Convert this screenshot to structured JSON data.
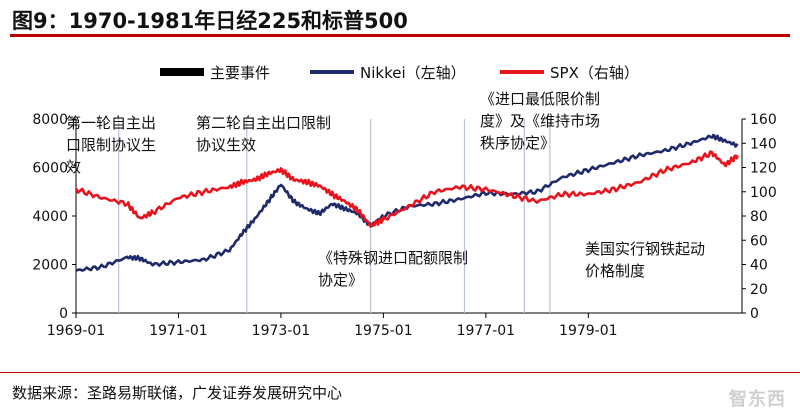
{
  "header": {
    "title": "图9：1970-1981年日经225和标普500"
  },
  "footer": {
    "source": "数据来源：圣路易斯联储，广发证券发展研究中心",
    "watermark": "智东西"
  },
  "chart_data": {
    "type": "line",
    "title": "",
    "xlabel": "",
    "ylabel": "",
    "x_ticks": [
      "1969-01",
      "1971-01",
      "1973-01",
      "1975-01",
      "1977-01",
      "1979-01"
    ],
    "y_left_ticks": [
      0,
      2000,
      4000,
      6000,
      8000
    ],
    "y_right_ticks": [
      0,
      20,
      40,
      60,
      80,
      100,
      120,
      140,
      160
    ],
    "ylim_left": [
      0,
      8000
    ],
    "ylim_right": [
      0,
      160
    ],
    "xlim": [
      "1969-01",
      "1981-12"
    ],
    "legend": {
      "placement": "top-center",
      "entries": [
        {
          "key": "events",
          "label": "主要事件",
          "color": "#000000"
        },
        {
          "key": "nikkei",
          "label": "Nikkei（左轴）",
          "color": "#1f2a6b"
        },
        {
          "key": "spx",
          "label": "SPX（右轴）",
          "color": "#e8141d"
        }
      ]
    },
    "events": [
      {
        "date": "1969-11",
        "label": "第一轮自主出口限制协议生效"
      },
      {
        "date": "1972-05",
        "label": "第二轮自主出口限制协议生效"
      },
      {
        "date": "1974-10",
        "label": "《特殊钢进口配额限制协定》"
      },
      {
        "date": "1976-08",
        "label": "《进口最低限价制度》及《维持市场秩序协定》"
      },
      {
        "date": "1977-10",
        "label": "《进口最低限价制度》及《维持市场秩序协定》"
      },
      {
        "date": "1978-04",
        "label": "美国实行钢铁起动价格制度"
      }
    ],
    "annotations": [
      {
        "id": "a1",
        "lines": [
          "第一轮自主出",
          "口限制协议生",
          "效"
        ]
      },
      {
        "id": "a2",
        "lines": [
          "第二轮自主出口限制",
          "协议生效"
        ]
      },
      {
        "id": "a3",
        "lines": [
          "《特殊钢进口配额限制",
          "协定》"
        ]
      },
      {
        "id": "a4",
        "lines": [
          "《进口最低限价制",
          "度》及《维持市场",
          "秩序协定》"
        ]
      },
      {
        "id": "a5",
        "lines": [
          "美国实行钢铁起动",
          "价格制度"
        ]
      }
    ],
    "series": [
      {
        "name": "Nikkei（左轴）",
        "axis": "left",
        "x": [
          "1969-01",
          "1969-07",
          "1970-01",
          "1970-04",
          "1970-07",
          "1971-01",
          "1971-07",
          "1972-01",
          "1972-04",
          "1972-07",
          "1972-10",
          "1973-01",
          "1973-04",
          "1973-07",
          "1973-10",
          "1974-01",
          "1974-04",
          "1974-07",
          "1974-10",
          "1975-01",
          "1975-07",
          "1976-01",
          "1976-07",
          "1977-01",
          "1977-07",
          "1978-01",
          "1978-07",
          "1979-01",
          "1979-07",
          "1980-01",
          "1980-07",
          "1981-01",
          "1981-06",
          "1981-09",
          "1981-12"
        ],
        "values": [
          1750,
          1900,
          2300,
          2250,
          2000,
          2100,
          2200,
          2600,
          3300,
          3900,
          4600,
          5300,
          4600,
          4300,
          4100,
          4500,
          4300,
          4100,
          3600,
          4000,
          4400,
          4500,
          4700,
          4950,
          4900,
          5000,
          5600,
          5900,
          6200,
          6500,
          6700,
          7000,
          7300,
          7100,
          6900
        ]
      },
      {
        "name": "SPX（右轴）",
        "axis": "right",
        "x": [
          "1969-01",
          "1969-07",
          "1970-01",
          "1970-04",
          "1970-07",
          "1971-01",
          "1971-07",
          "1972-01",
          "1972-04",
          "1972-07",
          "1972-10",
          "1973-01",
          "1973-04",
          "1973-07",
          "1973-10",
          "1974-01",
          "1974-04",
          "1974-07",
          "1974-10",
          "1975-01",
          "1975-07",
          "1976-01",
          "1976-07",
          "1977-01",
          "1977-07",
          "1978-01",
          "1978-07",
          "1979-01",
          "1979-07",
          "1980-01",
          "1980-07",
          "1981-01",
          "1981-06",
          "1981-09",
          "1981-12"
        ],
        "values": [
          102,
          95,
          90,
          78,
          83,
          95,
          100,
          104,
          108,
          110,
          115,
          118,
          110,
          108,
          105,
          98,
          92,
          85,
          72,
          77,
          88,
          100,
          104,
          102,
          97,
          92,
          98,
          98,
          102,
          108,
          118,
          124,
          132,
          122,
          130
        ]
      }
    ]
  }
}
